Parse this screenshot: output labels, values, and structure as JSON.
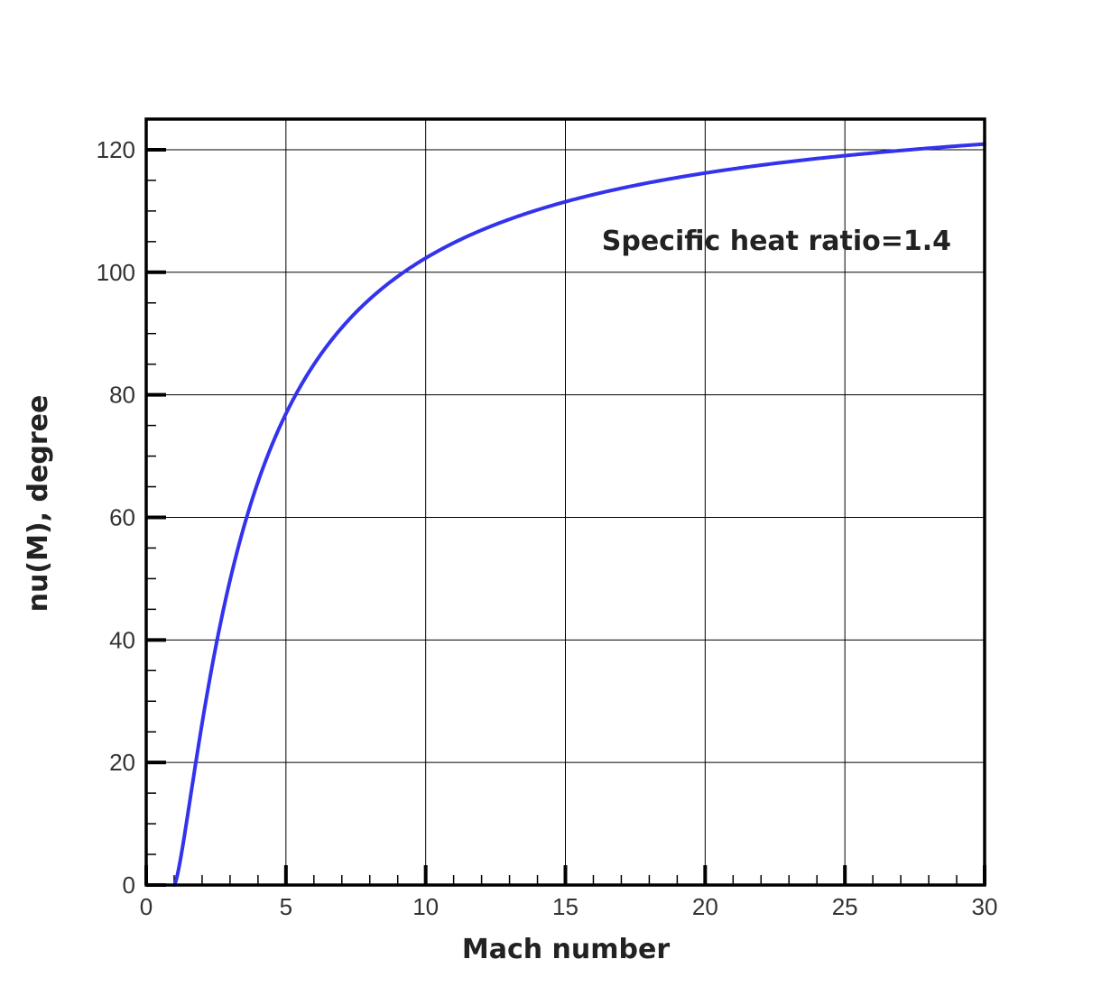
{
  "chart_data": {
    "type": "line",
    "xlabel": "Mach number",
    "ylabel": "nu(M), degree",
    "xlim": [
      0,
      30
    ],
    "ylim": [
      0,
      125
    ],
    "x_ticks": [
      "0",
      "5",
      "10",
      "15",
      "20",
      "25",
      "30"
    ],
    "y_ticks": [
      "0",
      "20",
      "40",
      "60",
      "80",
      "100",
      "120"
    ],
    "grid": true,
    "annotation": "Specific heat ratio=1.4",
    "series": [
      {
        "color": "#3333ee",
        "function": "prandtl-meyer",
        "gamma": 1.4,
        "x_range": [
          1,
          30
        ],
        "points": [
          [
            1,
            0
          ],
          [
            1.5,
            11.9
          ],
          [
            2,
            26.4
          ],
          [
            2.5,
            39.1
          ],
          [
            3,
            49.8
          ],
          [
            4,
            65.8
          ],
          [
            5,
            76.9
          ],
          [
            6,
            84.9
          ],
          [
            7,
            90.9
          ],
          [
            8,
            95.6
          ],
          [
            9,
            99.3
          ],
          [
            10,
            102.3
          ],
          [
            12,
            106.9
          ],
          [
            15,
            111.4
          ],
          [
            20,
            116.2
          ],
          [
            25,
            119.1
          ],
          [
            30,
            121.0
          ]
        ]
      }
    ]
  }
}
